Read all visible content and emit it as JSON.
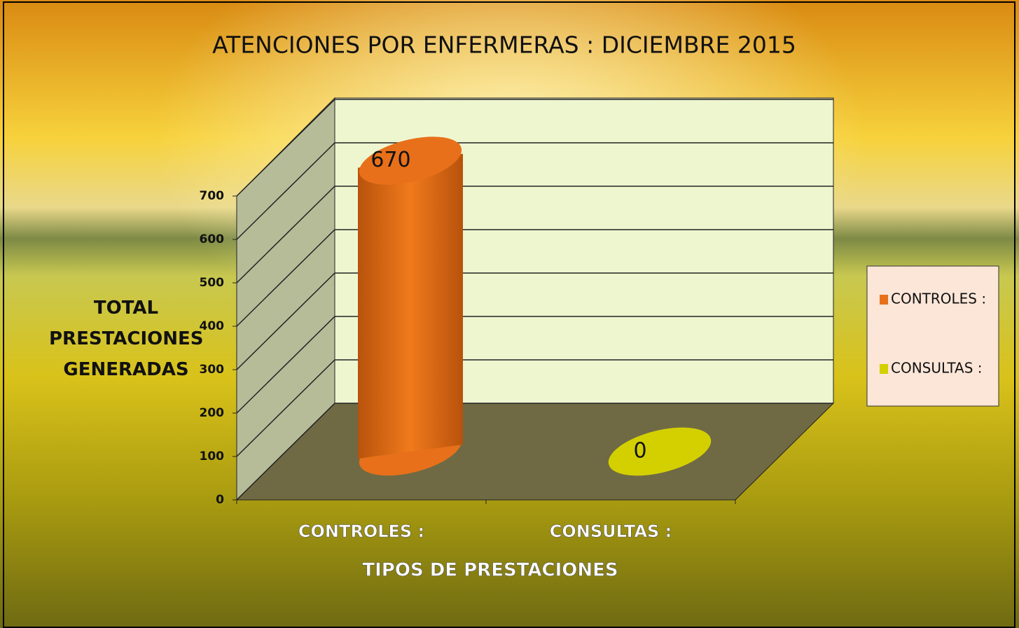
{
  "chart_data": {
    "type": "bar3d",
    "title": "ATENCIONES POR ENFERMERAS : DICIEMBRE 2015",
    "y_label": "TOTAL PRESTACIONES GENERADAS",
    "x_label": "TIPOS DE PRESTACIONES",
    "categories": [
      "CONTROLES :",
      "CONSULTAS :"
    ],
    "series": [
      {
        "name": "CONTROLES :",
        "color": "#e8701a",
        "values": [
          670,
          null
        ]
      },
      {
        "name": "CONSULTAS :",
        "color": "#d4d000",
        "values": [
          null,
          0
        ]
      }
    ],
    "ylim": [
      0,
      700
    ],
    "yticks": [
      0,
      100,
      200,
      300,
      400,
      500,
      600,
      700
    ],
    "grid": true,
    "legend": "right"
  }
}
